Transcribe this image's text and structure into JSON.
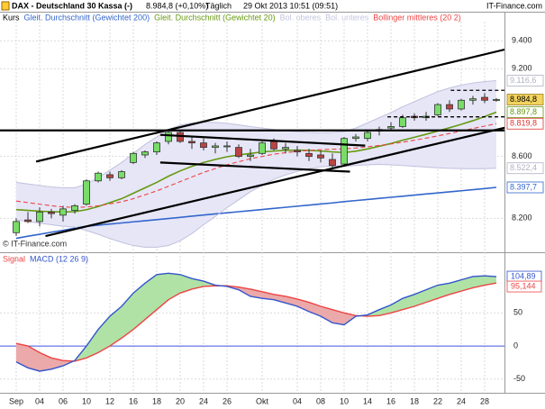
{
  "header": {
    "title": "DAX - Deutschland 30 Kassa (-)",
    "quote": "8.984,8 (+0,10%)",
    "interval": "Täglich",
    "timestamp": "29 Okt 2013 10:51 (09:51)",
    "brand": "IT-Finance.com"
  },
  "chart_data": [
    {
      "type": "candlestick",
      "name": "Kurs",
      "watermark": "© IT-Finance.com",
      "categories": [
        "Sep",
        null,
        "04",
        null,
        "06",
        null,
        "10",
        null,
        "12",
        null,
        "16",
        null,
        "18",
        null,
        "20",
        null,
        "24",
        null,
        "26",
        null,
        null,
        "Okt",
        null,
        null,
        "04",
        null,
        "08",
        null,
        "10",
        null,
        "14",
        null,
        "16",
        null,
        "18",
        null,
        "22",
        null,
        "24",
        null,
        "28",
        null
      ],
      "open": [
        8110,
        8190,
        8180,
        8240,
        8220,
        8250,
        8290,
        8440,
        8480,
        8460,
        8560,
        8610,
        8630,
        8700,
        8760,
        8700,
        8690,
        8660,
        8670,
        8660,
        8600,
        8620,
        8700,
        8650,
        8640,
        8620,
        8610,
        8580,
        8550,
        8720,
        8720,
        8770,
        8790,
        8800,
        8870,
        8860,
        8880,
        8950,
        8920,
        8980,
        9000,
        8980
      ],
      "high": [
        8200,
        8240,
        8270,
        8260,
        8280,
        8290,
        8450,
        8500,
        8500,
        8510,
        8630,
        8640,
        8700,
        8770,
        8770,
        8730,
        8720,
        8690,
        8700,
        8680,
        8650,
        8700,
        8720,
        8690,
        8670,
        8650,
        8640,
        8620,
        8730,
        8750,
        8780,
        8800,
        8830,
        8880,
        8890,
        8900,
        8960,
        8980,
        8990,
        9010,
        9030,
        8995
      ],
      "low": [
        8090,
        8170,
        8150,
        8200,
        8180,
        8230,
        8280,
        8430,
        8440,
        8450,
        8550,
        8590,
        8610,
        8680,
        8690,
        8650,
        8640,
        8620,
        8630,
        8590,
        8570,
        8610,
        8640,
        8620,
        8600,
        8570,
        8560,
        8520,
        8540,
        8700,
        8700,
        8740,
        8770,
        8790,
        8840,
        8840,
        8870,
        8900,
        8910,
        8950,
        8960,
        8970
      ],
      "close": [
        8180,
        8180,
        8240,
        8230,
        8260,
        8280,
        8440,
        8490,
        8460,
        8500,
        8620,
        8630,
        8690,
        8760,
        8700,
        8690,
        8660,
        8670,
        8670,
        8600,
        8610,
        8690,
        8650,
        8660,
        8630,
        8600,
        8590,
        8540,
        8720,
        8730,
        8760,
        8780,
        8800,
        8860,
        8860,
        8870,
        8950,
        8920,
        8980,
        8990,
        8980,
        8984.8
      ],
      "up_color": "#77dd66",
      "down_color": "#bb4444",
      "band_color": "#e6e6f7",
      "series": [
        {
          "name": "Gleit. Durchschnitt (Gewichtet 200)",
          "color": "#3366cc",
          "style": "solid",
          "values": [
            8075,
            8088,
            8100,
            8113,
            8125,
            8138,
            8150,
            8157,
            8164,
            8171,
            8178,
            8185,
            8192,
            8199,
            8206,
            8214,
            8221,
            8228,
            8235,
            8242,
            8249,
            8256,
            8263,
            8270,
            8277,
            8284,
            8291,
            8298,
            8306,
            8313,
            8320,
            8327,
            8334,
            8341,
            8348,
            8355,
            8362,
            8369,
            8376,
            8383,
            8390,
            8397.7
          ]
        },
        {
          "name": "Gleit. Durchschnitt (Gewichtet 20)",
          "color": "#669911",
          "style": "solid",
          "values": [
            8255,
            8250,
            8245,
            8242,
            8240,
            8242,
            8255,
            8275,
            8300,
            8325,
            8360,
            8395,
            8430,
            8470,
            8505,
            8535,
            8560,
            8580,
            8598,
            8610,
            8620,
            8630,
            8636,
            8640,
            8642,
            8640,
            8636,
            8630,
            8626,
            8635,
            8650,
            8668,
            8686,
            8708,
            8728,
            8748,
            8770,
            8792,
            8815,
            8840,
            8868,
            8897.8
          ]
        },
        {
          "name": "Bol. oberes",
          "color": "#c4c4e0",
          "style": "band-upper",
          "values": [
            8430,
            8420,
            8410,
            8400,
            8395,
            8395,
            8420,
            8460,
            8510,
            8560,
            8620,
            8680,
            8730,
            8780,
            8810,
            8825,
            8830,
            8828,
            8822,
            8812,
            8800,
            8790,
            8780,
            8772,
            8765,
            8760,
            8758,
            8760,
            8765,
            8790,
            8825,
            8860,
            8895,
            8935,
            8970,
            9005,
            9040,
            9065,
            9085,
            9100,
            9110,
            9116.6
          ]
        },
        {
          "name": "Bol. unteres",
          "color": "#c4c4e0",
          "style": "band-lower",
          "values": [
            8190,
            8180,
            8170,
            8160,
            8150,
            8145,
            8124,
            8100,
            8074,
            8050,
            8030,
            8020,
            8020,
            8030,
            8060,
            8105,
            8160,
            8212,
            8268,
            8318,
            8370,
            8410,
            8450,
            8478,
            8501,
            8520,
            8532,
            8536,
            8535,
            8540,
            8545,
            8548,
            8545,
            8540,
            8535,
            8530,
            8525,
            8522,
            8520,
            8519,
            8520,
            8522.4
          ]
        },
        {
          "name": "Bollinger mittleres (20 2)",
          "color": "#ee4444",
          "style": "dashed",
          "values": [
            8310,
            8300,
            8290,
            8280,
            8272,
            8270,
            8272,
            8280,
            8292,
            8305,
            8325,
            8350,
            8375,
            8405,
            8435,
            8465,
            8495,
            8520,
            8545,
            8565,
            8585,
            8600,
            8615,
            8625,
            8633,
            8640,
            8645,
            8648,
            8650,
            8656,
            8664,
            8673,
            8683,
            8695,
            8708,
            8722,
            8737,
            8753,
            8770,
            8787,
            8803,
            8819.8
          ]
        }
      ],
      "log_scale": true,
      "ylim": [
        8000,
        9540
      ],
      "yticks": [
        {
          "value": 8200,
          "label": "8.200"
        },
        {
          "value": 8600,
          "label": "8.600"
        },
        {
          "value": 9200,
          "label": "9.200"
        },
        {
          "value": 9400,
          "label": "9.400"
        }
      ],
      "grid": true,
      "trendlines": [
        {
          "x0": 1.7,
          "y0": 8566,
          "x1": 41.7,
          "y1": 9337,
          "style": "solid"
        },
        {
          "x0": 2.5,
          "y0": 8089,
          "x1": 41.7,
          "y1": 8792,
          "style": "solid"
        },
        {
          "x0": -1.4,
          "y0": 8774,
          "x1": 41.7,
          "y1": 8774,
          "style": "solid"
        },
        {
          "x0": 12.3,
          "y0": 8744,
          "x1": 29.8,
          "y1": 8672,
          "style": "solid"
        },
        {
          "x0": 12.3,
          "y0": 8560,
          "x1": 28.5,
          "y1": 8500,
          "style": "solid"
        },
        {
          "x0": 37.1,
          "y0": 9049,
          "x1": 41.7,
          "y1": 9049,
          "style": "dashed"
        },
        {
          "x0": 31.7,
          "y0": 8866,
          "x1": 41.7,
          "y1": 8866,
          "style": "dashed"
        }
      ],
      "price_labels": [
        {
          "value": 9116.6,
          "label": "9.116,6",
          "color": "#b0b0c4"
        },
        {
          "value": 8984.8,
          "label": "8.984,8",
          "color": "#000000",
          "background": "#f2d35e"
        },
        {
          "value": 8897.8,
          "label": "8.897,8",
          "color": "#669911"
        },
        {
          "value": 8819.8,
          "label": "8.819,8",
          "color": "#dd3333"
        },
        {
          "value": 8522.4,
          "label": "8.522,4",
          "color": "#b0b0c4"
        },
        {
          "value": 8397.7,
          "label": "8.397,7",
          "color": "#3366cc"
        }
      ]
    },
    {
      "type": "line",
      "series": [
        {
          "name": "Signal",
          "color": "#ee4444",
          "last_label": "95,144",
          "values": [
            4,
            0,
            -10,
            -18,
            -22,
            -23,
            -18,
            -10,
            0,
            12,
            25,
            40,
            55,
            70,
            80,
            86,
            90,
            91,
            91,
            89,
            86,
            82,
            78,
            75,
            71,
            66,
            60,
            55,
            50,
            46,
            45,
            46,
            50,
            55,
            60,
            66,
            72,
            78,
            83,
            88,
            92,
            95.144
          ]
        },
        {
          "name": "MACD (12 26 9)",
          "color": "#3355cc",
          "last_label": "104,89",
          "values": [
            -24,
            -33,
            -38,
            -35,
            -30,
            -22,
            0,
            25,
            45,
            60,
            80,
            95,
            108,
            110,
            108,
            102,
            98,
            92,
            90,
            85,
            75,
            72,
            70,
            65,
            60,
            52,
            45,
            35,
            32,
            45,
            47,
            55,
            62,
            72,
            78,
            85,
            92,
            95,
            100,
            105,
            106,
            104.89
          ]
        }
      ],
      "ylim": [
        -68,
        139
      ],
      "yticks": [
        -50,
        0,
        50
      ],
      "grid": true,
      "zero_line_color": "#4455dd",
      "fill_above_color": "#b0e2a6",
      "fill_below_color": "#eba9a9"
    }
  ]
}
